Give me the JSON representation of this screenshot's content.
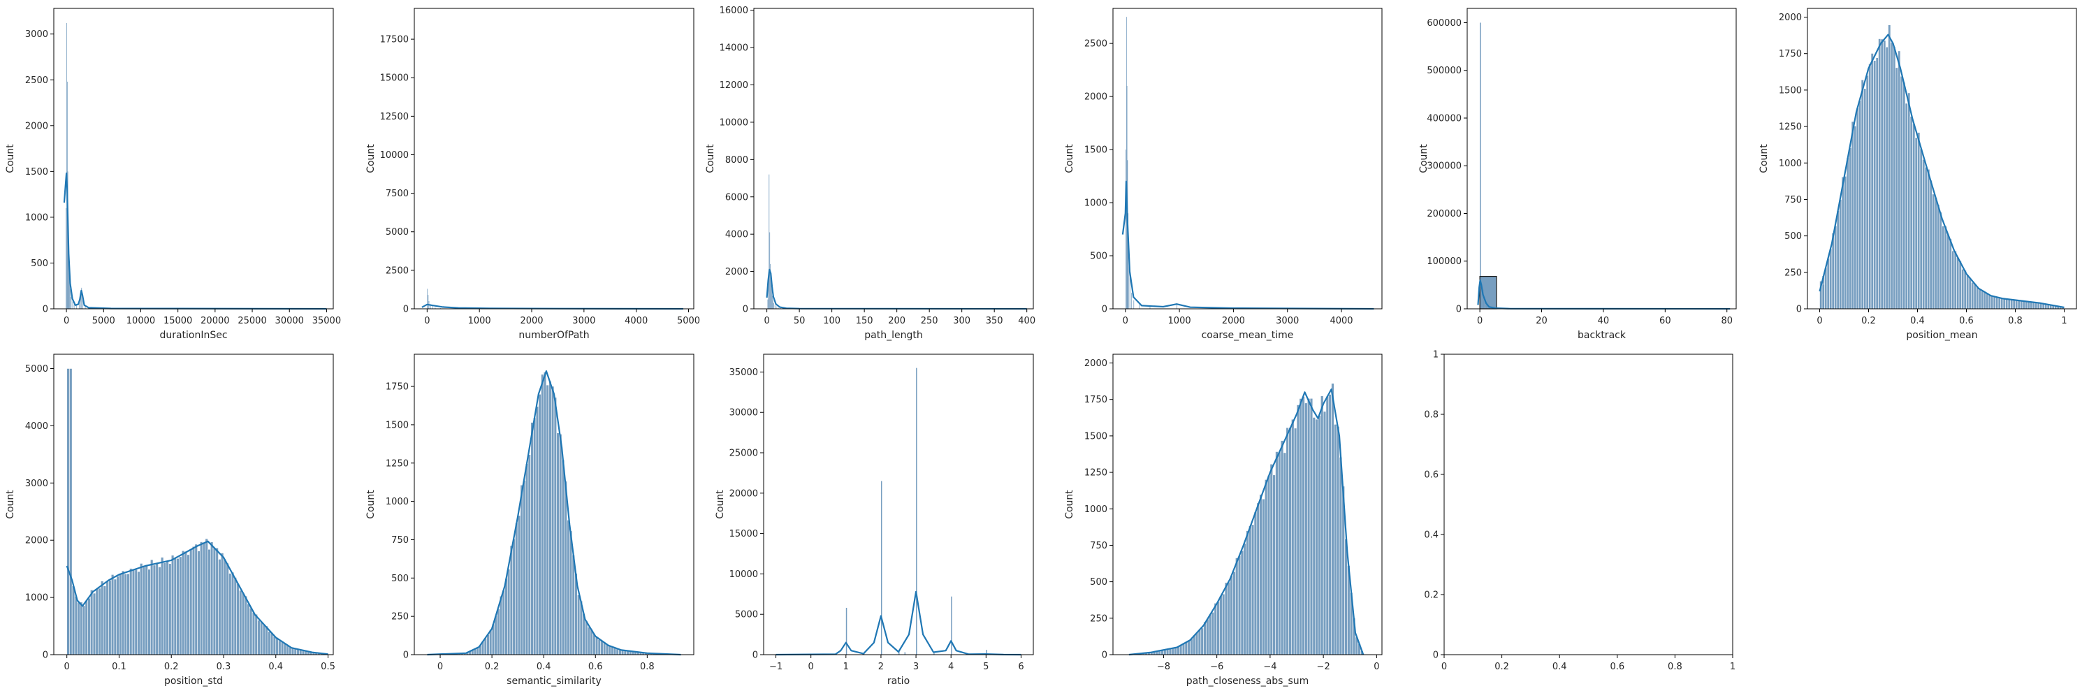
{
  "colors": {
    "bar_fill": "#7099bd",
    "bar_edge": "#ffffff",
    "kde_line": "#1f77b4",
    "axes": "#000000"
  },
  "chart_data": [
    {
      "type": "histogram",
      "xlabel": "durationInSec",
      "ylabel": "Count",
      "xlim": [
        -1700,
        35900
      ],
      "ylim": [
        0,
        3280
      ],
      "xticks": [
        0,
        5000,
        10000,
        15000,
        20000,
        25000,
        30000,
        35000
      ],
      "yticks": [
        0,
        500,
        1000,
        1500,
        2000,
        2500,
        3000
      ],
      "bars": [
        [
          -100,
          1100,
          70
        ],
        [
          10,
          3120,
          70
        ],
        [
          80,
          2480,
          70
        ],
        [
          150,
          1500,
          70
        ],
        [
          220,
          900,
          70
        ],
        [
          300,
          520,
          70
        ],
        [
          380,
          330,
          70
        ],
        [
          480,
          220,
          70
        ],
        [
          600,
          130,
          70
        ],
        [
          800,
          80,
          70
        ],
        [
          1000,
          50,
          70
        ],
        [
          1300,
          40,
          70
        ],
        [
          1700,
          70,
          70
        ],
        [
          1900,
          160,
          70
        ],
        [
          2000,
          230,
          70
        ],
        [
          2150,
          120,
          70
        ],
        [
          2500,
          30,
          70
        ],
        [
          3500,
          12,
          70
        ],
        [
          6000,
          6,
          70
        ]
      ],
      "kde": [
        [
          -300,
          1160
        ],
        [
          0,
          1480
        ],
        [
          100,
          1300
        ],
        [
          300,
          600
        ],
        [
          500,
          280
        ],
        [
          800,
          110
        ],
        [
          1200,
          40
        ],
        [
          1600,
          50
        ],
        [
          1800,
          100
        ],
        [
          2000,
          200
        ],
        [
          2150,
          150
        ],
        [
          2400,
          40
        ],
        [
          3000,
          12
        ],
        [
          6000,
          4
        ],
        [
          35000,
          0
        ]
      ]
    },
    {
      "type": "histogram",
      "xlabel": "numberOfPath",
      "ylabel": "Count",
      "xlim": [
        -245,
        5100
      ],
      "ylim": [
        0,
        19500
      ],
      "xticks": [
        0,
        1000,
        2000,
        3000,
        4000,
        5000
      ],
      "yticks": [
        0,
        2500,
        5000,
        7500,
        10000,
        12500,
        15000,
        17500
      ],
      "bars": [
        [
          0,
          1300,
          10
        ],
        [
          15,
          900,
          10
        ],
        [
          30,
          500,
          10
        ],
        [
          60,
          300,
          10
        ],
        [
          100,
          180,
          10
        ],
        [
          150,
          90,
          10
        ],
        [
          250,
          40,
          10
        ]
      ],
      "kde": [
        [
          -100,
          100
        ],
        [
          0,
          280
        ],
        [
          100,
          220
        ],
        [
          300,
          120
        ],
        [
          600,
          60
        ],
        [
          1200,
          30
        ],
        [
          2500,
          15
        ],
        [
          4900,
          0
        ]
      ]
    },
    {
      "type": "histogram",
      "xlabel": "path_length",
      "ylabel": "Count",
      "xlim": [
        -20,
        410
      ],
      "ylim": [
        0,
        16100
      ],
      "xticks": [
        0,
        50,
        100,
        150,
        200,
        250,
        300,
        350,
        400
      ],
      "yticks": [
        0,
        2000,
        4000,
        6000,
        8000,
        10000,
        12000,
        14000,
        16000
      ],
      "bars": [
        [
          1,
          500,
          0.8
        ],
        [
          2,
          1500,
          0.8
        ],
        [
          3,
          7200,
          0.8
        ],
        [
          4,
          4100,
          0.8
        ],
        [
          5,
          2400,
          0.8
        ],
        [
          6,
          1700,
          0.8
        ],
        [
          7,
          1100,
          0.8
        ],
        [
          8,
          700,
          0.8
        ],
        [
          9,
          450,
          0.8
        ],
        [
          10,
          300,
          0.8
        ],
        [
          12,
          200,
          0.8
        ],
        [
          14,
          130,
          0.8
        ],
        [
          17,
          70,
          0.8
        ],
        [
          21,
          35,
          0.8
        ]
      ],
      "kde": [
        [
          0,
          600
        ],
        [
          2,
          1500
        ],
        [
          4,
          2100
        ],
        [
          6,
          1900
        ],
        [
          8,
          1200
        ],
        [
          10,
          650
        ],
        [
          14,
          250
        ],
        [
          20,
          90
        ],
        [
          30,
          30
        ],
        [
          50,
          10
        ],
        [
          400,
          0
        ]
      ]
    },
    {
      "type": "histogram",
      "xlabel": "coarse_mean_time",
      "ylabel": "Count",
      "xlim": [
        -230,
        4750
      ],
      "ylim": [
        0,
        2830
      ],
      "xticks": [
        0,
        1000,
        2000,
        3000,
        4000
      ],
      "yticks": [
        0,
        500,
        1000,
        1500,
        2000,
        2500
      ],
      "bars": [
        [
          5,
          1500,
          9
        ],
        [
          15,
          2750,
          9
        ],
        [
          25,
          2100,
          9
        ],
        [
          35,
          1400,
          9
        ],
        [
          45,
          900,
          9
        ],
        [
          60,
          500,
          9
        ],
        [
          80,
          300,
          9
        ],
        [
          110,
          150,
          9
        ],
        [
          150,
          80,
          9
        ],
        [
          250,
          40,
          9
        ],
        [
          450,
          30,
          9
        ],
        [
          950,
          50,
          9
        ]
      ],
      "kde": [
        [
          -50,
          700
        ],
        [
          0,
          900
        ],
        [
          15,
          1200
        ],
        [
          40,
          800
        ],
        [
          80,
          350
        ],
        [
          150,
          110
        ],
        [
          300,
          30
        ],
        [
          500,
          25
        ],
        [
          700,
          20
        ],
        [
          950,
          45
        ],
        [
          1200,
          15
        ],
        [
          2000,
          6
        ],
        [
          4600,
          0
        ]
      ]
    },
    {
      "type": "histogram",
      "xlabel": "backtrack",
      "ylabel": "Count",
      "xlim": [
        -4.1,
        83
      ],
      "ylim": [
        0,
        630000
      ],
      "xticks": [
        0,
        20,
        40,
        60,
        80
      ],
      "yticks": [
        0,
        100000,
        200000,
        300000,
        400000,
        500000,
        600000
      ],
      "bars": [
        [
          0,
          600000,
          0.35
        ],
        [
          1,
          40000,
          0.35
        ],
        [
          2,
          15000,
          0.35
        ],
        [
          3,
          5000,
          0.35
        ],
        [
          0,
          68000,
          5.4
        ]
      ],
      "kde": [
        [
          -0.6,
          8000
        ],
        [
          -0.2,
          45000
        ],
        [
          0.1,
          60000
        ],
        [
          0.5,
          50000
        ],
        [
          1,
          30000
        ],
        [
          2,
          12000
        ],
        [
          3,
          4000
        ],
        [
          5,
          1500
        ],
        [
          10,
          300
        ],
        [
          81,
          0
        ]
      ]
    },
    {
      "type": "histogram",
      "xlabel": "position_mean",
      "ylabel": "Count",
      "xlim": [
        -0.05,
        1.05
      ],
      "ylim": [
        0,
        2060
      ],
      "xticks": [
        0,
        0.2,
        0.4,
        0.6,
        0.8,
        1
      ],
      "yticks": [
        0,
        250,
        500,
        750,
        1000,
        1250,
        1500,
        1750,
        2000
      ],
      "bin_width": 0.01,
      "bars": [],
      "kde": [
        [
          0,
          120
        ],
        [
          0.05,
          450
        ],
        [
          0.1,
          900
        ],
        [
          0.15,
          1350
        ],
        [
          0.2,
          1650
        ],
        [
          0.25,
          1820
        ],
        [
          0.28,
          1880
        ],
        [
          0.3,
          1820
        ],
        [
          0.33,
          1650
        ],
        [
          0.38,
          1300
        ],
        [
          0.45,
          900
        ],
        [
          0.5,
          620
        ],
        [
          0.55,
          400
        ],
        [
          0.6,
          240
        ],
        [
          0.65,
          140
        ],
        [
          0.7,
          90
        ],
        [
          0.75,
          70
        ],
        [
          0.8,
          60
        ],
        [
          0.85,
          50
        ],
        [
          0.9,
          40
        ],
        [
          0.95,
          25
        ],
        [
          1,
          10
        ]
      ]
    },
    {
      "type": "histogram",
      "xlabel": "position_std",
      "ylabel": "Count",
      "xlim": [
        -0.025,
        0.51
      ],
      "ylim": [
        0,
        5250
      ],
      "xticks": [
        0,
        0.1,
        0.2,
        0.3,
        0.4,
        0.5
      ],
      "yticks": [
        0,
        1000,
        2000,
        3000,
        4000,
        5000
      ],
      "bin_width": 0.005,
      "bars": [],
      "kde": [
        [
          0,
          1550
        ],
        [
          0.01,
          1300
        ],
        [
          0.02,
          950
        ],
        [
          0.03,
          850
        ],
        [
          0.05,
          1100
        ],
        [
          0.08,
          1300
        ],
        [
          0.1,
          1400
        ],
        [
          0.15,
          1550
        ],
        [
          0.2,
          1650
        ],
        [
          0.25,
          1900
        ],
        [
          0.27,
          1980
        ],
        [
          0.3,
          1700
        ],
        [
          0.33,
          1200
        ],
        [
          0.36,
          700
        ],
        [
          0.4,
          300
        ],
        [
          0.43,
          120
        ],
        [
          0.47,
          40
        ],
        [
          0.5,
          10
        ]
      ]
    },
    {
      "type": "histogram",
      "xlabel": "semantic_similarity",
      "ylabel": "Count",
      "xlim": [
        -0.1,
        0.98
      ],
      "ylim": [
        0,
        1960
      ],
      "xticks": [
        0,
        0.2,
        0.4,
        0.6,
        0.8
      ],
      "yticks": [
        0,
        250,
        500,
        750,
        1000,
        1250,
        1500,
        1750
      ],
      "bin_width": 0.01,
      "bars": [],
      "kde": [
        [
          -0.05,
          0
        ],
        [
          0.1,
          10
        ],
        [
          0.15,
          50
        ],
        [
          0.2,
          170
        ],
        [
          0.25,
          450
        ],
        [
          0.3,
          900
        ],
        [
          0.35,
          1400
        ],
        [
          0.38,
          1700
        ],
        [
          0.41,
          1850
        ],
        [
          0.44,
          1700
        ],
        [
          0.47,
          1350
        ],
        [
          0.5,
          850
        ],
        [
          0.53,
          450
        ],
        [
          0.56,
          230
        ],
        [
          0.6,
          120
        ],
        [
          0.65,
          60
        ],
        [
          0.7,
          30
        ],
        [
          0.8,
          10
        ],
        [
          0.93,
          0
        ]
      ]
    },
    {
      "type": "histogram",
      "xlabel": "ratio",
      "ylabel": "Count",
      "xlim": [
        -1.35,
        6.35
      ],
      "ylim": [
        0,
        37200
      ],
      "xticks": [
        -1,
        0,
        1,
        2,
        3,
        4,
        5,
        6
      ],
      "yticks": [
        0,
        5000,
        10000,
        15000,
        20000,
        25000,
        30000,
        35000
      ],
      "bars": [
        [
          1,
          5800,
          0.03
        ],
        [
          2,
          21500,
          0.03
        ],
        [
          3,
          35500,
          0.03
        ],
        [
          4,
          7200,
          0.03
        ],
        [
          5,
          600,
          0.03
        ],
        [
          1.5,
          150,
          0.03
        ],
        [
          2.5,
          400,
          0.03
        ],
        [
          2.67,
          300,
          0.03
        ],
        [
          3.5,
          200,
          0.03
        ],
        [
          0.5,
          100,
          0.03
        ]
      ],
      "kde": [
        [
          -1,
          0
        ],
        [
          0.7,
          50
        ],
        [
          0.85,
          500
        ],
        [
          1,
          1500
        ],
        [
          1.15,
          500
        ],
        [
          1.5,
          120
        ],
        [
          1.8,
          1500
        ],
        [
          2,
          4800
        ],
        [
          2.2,
          1500
        ],
        [
          2.5,
          350
        ],
        [
          2.8,
          2500
        ],
        [
          3,
          7800
        ],
        [
          3.2,
          2500
        ],
        [
          3.5,
          300
        ],
        [
          3.85,
          500
        ],
        [
          4,
          1700
        ],
        [
          4.15,
          500
        ],
        [
          4.5,
          60
        ],
        [
          5,
          80
        ],
        [
          5.5,
          10
        ],
        [
          6,
          0
        ]
      ]
    },
    {
      "type": "histogram",
      "xlabel": "path_closeness_abs_sum",
      "ylabel": "Count",
      "xlim": [
        -9.9,
        0.2
      ],
      "ylim": [
        0,
        2060
      ],
      "xticks": [
        -8,
        -6,
        -4,
        -2,
        0
      ],
      "yticks": [
        0,
        250,
        500,
        750,
        1000,
        1250,
        1500,
        1750,
        2000
      ],
      "bin_width": 0.1,
      "bars": [],
      "kde": [
        [
          -9.3,
          0
        ],
        [
          -8.5,
          15
        ],
        [
          -7.5,
          50
        ],
        [
          -7,
          100
        ],
        [
          -6.5,
          200
        ],
        [
          -6,
          350
        ],
        [
          -5.5,
          520
        ],
        [
          -5,
          750
        ],
        [
          -4.5,
          1000
        ],
        [
          -4,
          1250
        ],
        [
          -3.5,
          1450
        ],
        [
          -3,
          1650
        ],
        [
          -2.7,
          1800
        ],
        [
          -2.4,
          1680
        ],
        [
          -2.2,
          1620
        ],
        [
          -2,
          1720
        ],
        [
          -1.7,
          1820
        ],
        [
          -1.4,
          1500
        ],
        [
          -1.1,
          700
        ],
        [
          -0.8,
          150
        ],
        [
          -0.5,
          0
        ]
      ]
    },
    {
      "type": "empty",
      "xlabel": "",
      "ylabel": "",
      "xlim": [
        0,
        1
      ],
      "ylim": [
        0,
        1
      ],
      "xticks": [
        0,
        0.2,
        0.4,
        0.6,
        0.8,
        1
      ],
      "yticks": [
        0,
        0.2,
        0.4,
        0.6,
        0.8,
        1
      ],
      "bars": [],
      "kde": []
    }
  ]
}
